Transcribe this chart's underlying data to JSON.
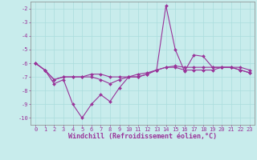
{
  "background_color": "#c8ecec",
  "line_color": "#993399",
  "grid_color": "#cceeee",
  "xlabel": "Windchill (Refroidissement éolien,°C)",
  "x": [
    0,
    1,
    2,
    3,
    4,
    5,
    6,
    7,
    8,
    9,
    10,
    11,
    12,
    13,
    14,
    15,
    16,
    17,
    18,
    19,
    20,
    21,
    22,
    23
  ],
  "series1": [
    -6.0,
    -6.5,
    -7.5,
    -7.2,
    -9.0,
    -10.0,
    -9.0,
    -8.3,
    -8.8,
    -7.8,
    -7.0,
    -6.8,
    -6.7,
    -6.5,
    -1.8,
    -5.0,
    -6.6,
    -5.4,
    -5.5,
    -6.3,
    -6.3,
    -6.3,
    -6.5,
    -6.7
  ],
  "series2": [
    -6.0,
    -6.5,
    -7.2,
    -7.0,
    -7.0,
    -7.0,
    -7.0,
    -7.2,
    -7.5,
    -7.2,
    -7.0,
    -7.0,
    -6.8,
    -6.5,
    -6.3,
    -6.3,
    -6.5,
    -6.5,
    -6.5,
    -6.5,
    -6.3,
    -6.3,
    -6.5,
    -6.7
  ],
  "series3": [
    -6.0,
    -6.5,
    -7.2,
    -7.0,
    -7.0,
    -7.0,
    -6.8,
    -6.8,
    -7.0,
    -7.0,
    -7.0,
    -7.0,
    -6.8,
    -6.5,
    -6.3,
    -6.2,
    -6.3,
    -6.3,
    -6.3,
    -6.3,
    -6.3,
    -6.3,
    -6.3,
    -6.5
  ],
  "ylim": [
    -10.5,
    -1.5
  ],
  "xlim": [
    -0.5,
    23.5
  ],
  "yticks": [
    -2,
    -3,
    -4,
    -5,
    -6,
    -7,
    -8,
    -9,
    -10
  ],
  "xticks": [
    0,
    1,
    2,
    3,
    4,
    5,
    6,
    7,
    8,
    9,
    10,
    11,
    12,
    13,
    14,
    15,
    16,
    17,
    18,
    19,
    20,
    21,
    22,
    23
  ],
  "markersize": 2.0,
  "linewidth": 0.8,
  "tick_fontsize": 5.0,
  "xlabel_fontsize": 6.0
}
